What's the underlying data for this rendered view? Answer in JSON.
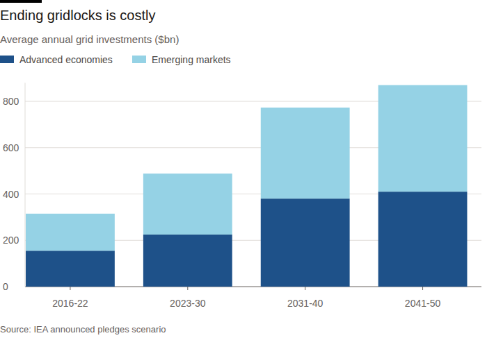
{
  "chart_data": {
    "type": "bar",
    "stacked": true,
    "title": "Ending gridlocks is costly",
    "subtitle": "Average annual grid investments ($bn)",
    "source": "Source: IEA announced pledges scenario",
    "categories": [
      "2016-22",
      "2023-30",
      "2031-40",
      "2041-50"
    ],
    "series": [
      {
        "name": "Advanced economies",
        "color": "#1e5189",
        "values": [
          155,
          225,
          380,
          410
        ]
      },
      {
        "name": "Emerging markets",
        "color": "#95d2e5",
        "values": [
          160,
          263,
          393,
          460
        ]
      }
    ],
    "ylim": [
      0,
      880
    ],
    "yticks": [
      0,
      200,
      400,
      600,
      800
    ],
    "grid": true,
    "legend": "top-left"
  }
}
